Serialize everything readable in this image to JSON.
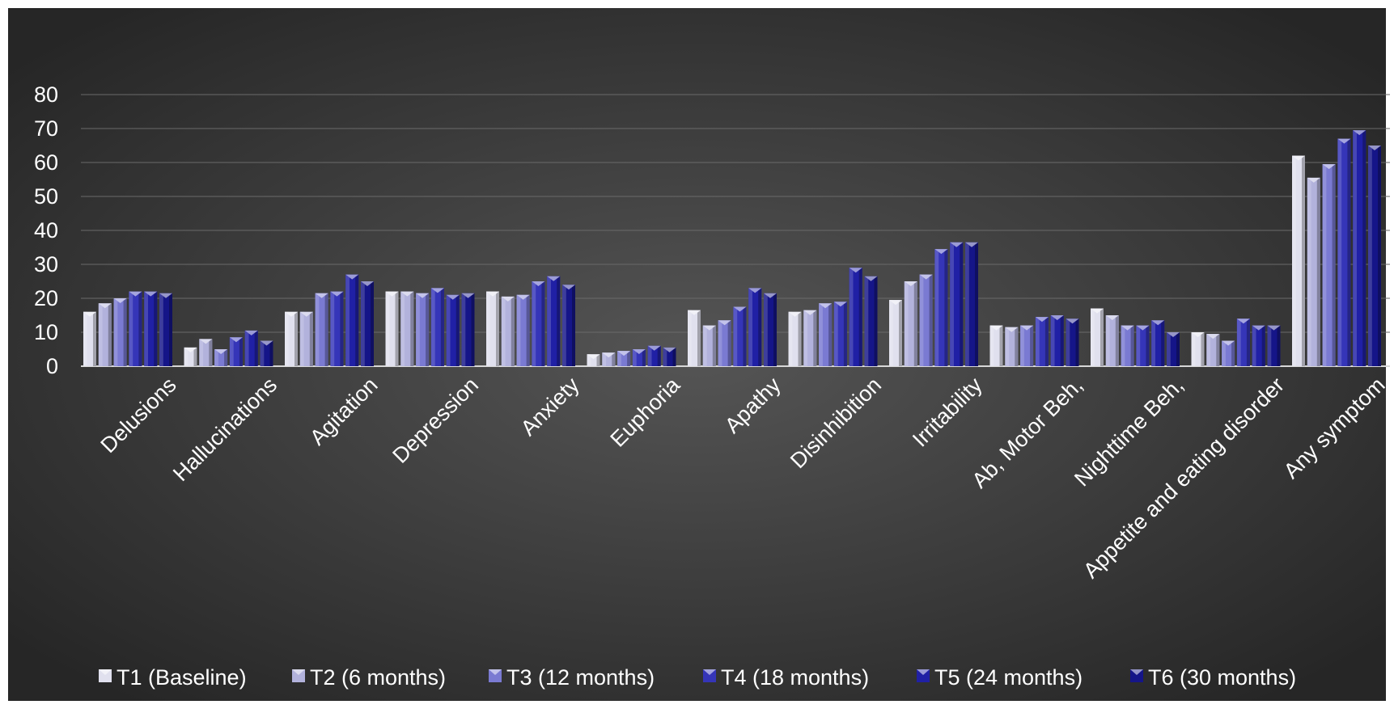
{
  "chart_data": {
    "type": "bar",
    "title": "",
    "xlabel": "",
    "ylabel": "",
    "ylim": [
      0,
      80
    ],
    "yticks": [
      "0",
      "10",
      "20",
      "30",
      "40",
      "50",
      "60",
      "70",
      "80"
    ],
    "grid": true,
    "legend_position": "bottom",
    "categories": [
      "Delusions",
      "Hallucinations",
      "Agitation",
      "Depression",
      "Anxiety",
      "Euphoria",
      "Apathy",
      "Disinhibition",
      "Irritability",
      "Ab, Motor Beh,",
      "Nighttime Beh,",
      "Appetite and eating disorder",
      "Any symptom"
    ],
    "series": [
      {
        "name": "T1 (Baseline)",
        "color": "#e0e0ee",
        "values": [
          16,
          5.5,
          16,
          22,
          22,
          3.5,
          16.5,
          16,
          19.5,
          12,
          17,
          10,
          62
        ]
      },
      {
        "name": "T2 (6 months)",
        "color": "#b2b2dc",
        "values": [
          18.5,
          8,
          16,
          22,
          20.5,
          4,
          12,
          16.5,
          25,
          11.5,
          15,
          9.5,
          55.5
        ]
      },
      {
        "name": "T3 (12 months)",
        "color": "#7a7ad2",
        "values": [
          20,
          5,
          21.5,
          21.5,
          21,
          4.5,
          13.5,
          18.5,
          27,
          12,
          12,
          7.5,
          59.5
        ]
      },
      {
        "name": "T4 (18 months)",
        "color": "#3535b8",
        "values": [
          22,
          8.5,
          22,
          23,
          25,
          5,
          17.5,
          19,
          34.5,
          14.5,
          12,
          14,
          67
        ]
      },
      {
        "name": "T5 (24 months)",
        "color": "#2020a5",
        "values": [
          22,
          10.5,
          27,
          21,
          26.5,
          6,
          23,
          29,
          36.5,
          15,
          13.5,
          12,
          69.5
        ]
      },
      {
        "name": "T6 (30 months)",
        "color": "#151588",
        "values": [
          21.5,
          7.5,
          25,
          21.5,
          24,
          5.5,
          21.5,
          26.5,
          36.5,
          14,
          10,
          12,
          65
        ]
      }
    ]
  }
}
